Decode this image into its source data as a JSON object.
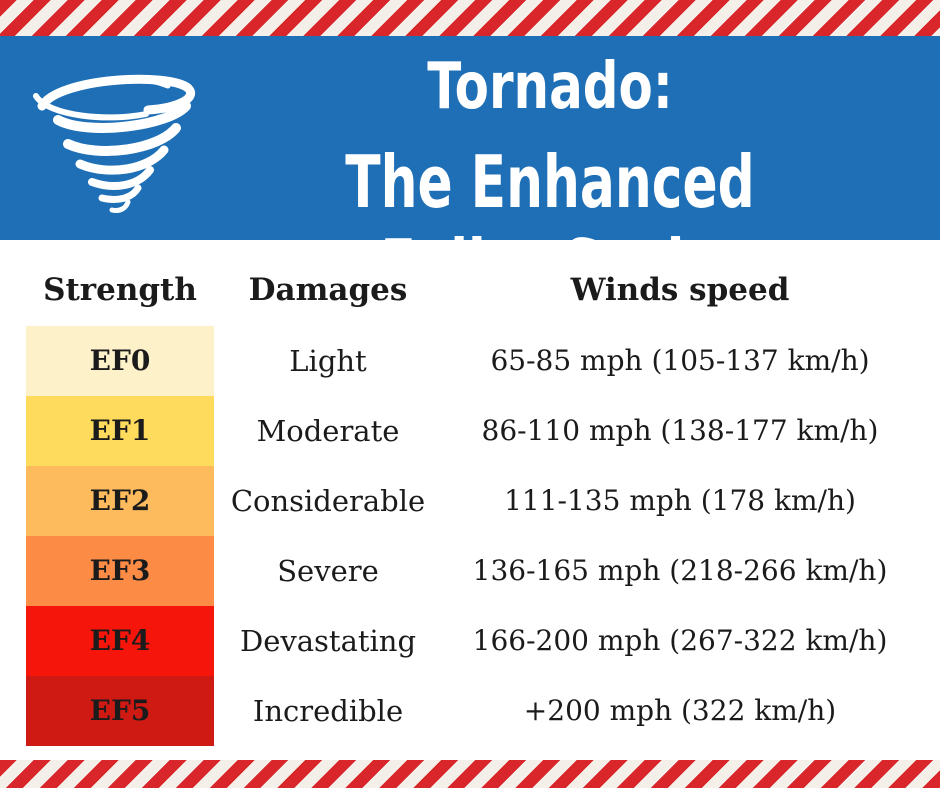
{
  "title": {
    "line1": "Tornado:",
    "line2": "The Enhanced Fujita Scale"
  },
  "icons": {
    "tornado": "tornado-icon"
  },
  "headers": {
    "strength": "Strength",
    "damages": "Damages",
    "speed": "Winds speed"
  },
  "colors": {
    "banner": "#1e6fb6",
    "stripe_red": "#d8262a",
    "ef0": "#fdf1c9",
    "ef1": "#fedb5c",
    "ef2": "#fdbb5d",
    "ef3": "#fb8b45",
    "ef4": "#f5150a",
    "ef5": "#cf1a14"
  },
  "rows": [
    {
      "level": "EF0",
      "damage": "Light",
      "speed": "65-85 mph (105-137 km/h)",
      "color": "#fdf1c9"
    },
    {
      "level": "EF1",
      "damage": "Moderate",
      "speed": "86-110 mph (138-177 km/h)",
      "color": "#fedb5c"
    },
    {
      "level": "EF2",
      "damage": "Considerable",
      "speed": "111-135 mph (178 km/h)",
      "color": "#fdbb5d"
    },
    {
      "level": "EF3",
      "damage": "Severe",
      "speed": "136-165 mph (218-266 km/h)",
      "color": "#fb8b45"
    },
    {
      "level": "EF4",
      "damage": "Devastating",
      "speed": "166-200 mph (267-322 km/h)",
      "color": "#f5150a"
    },
    {
      "level": "EF5",
      "damage": "Incredible",
      "speed": "+200 mph (322 km/h)",
      "color": "#cf1a14"
    }
  ]
}
